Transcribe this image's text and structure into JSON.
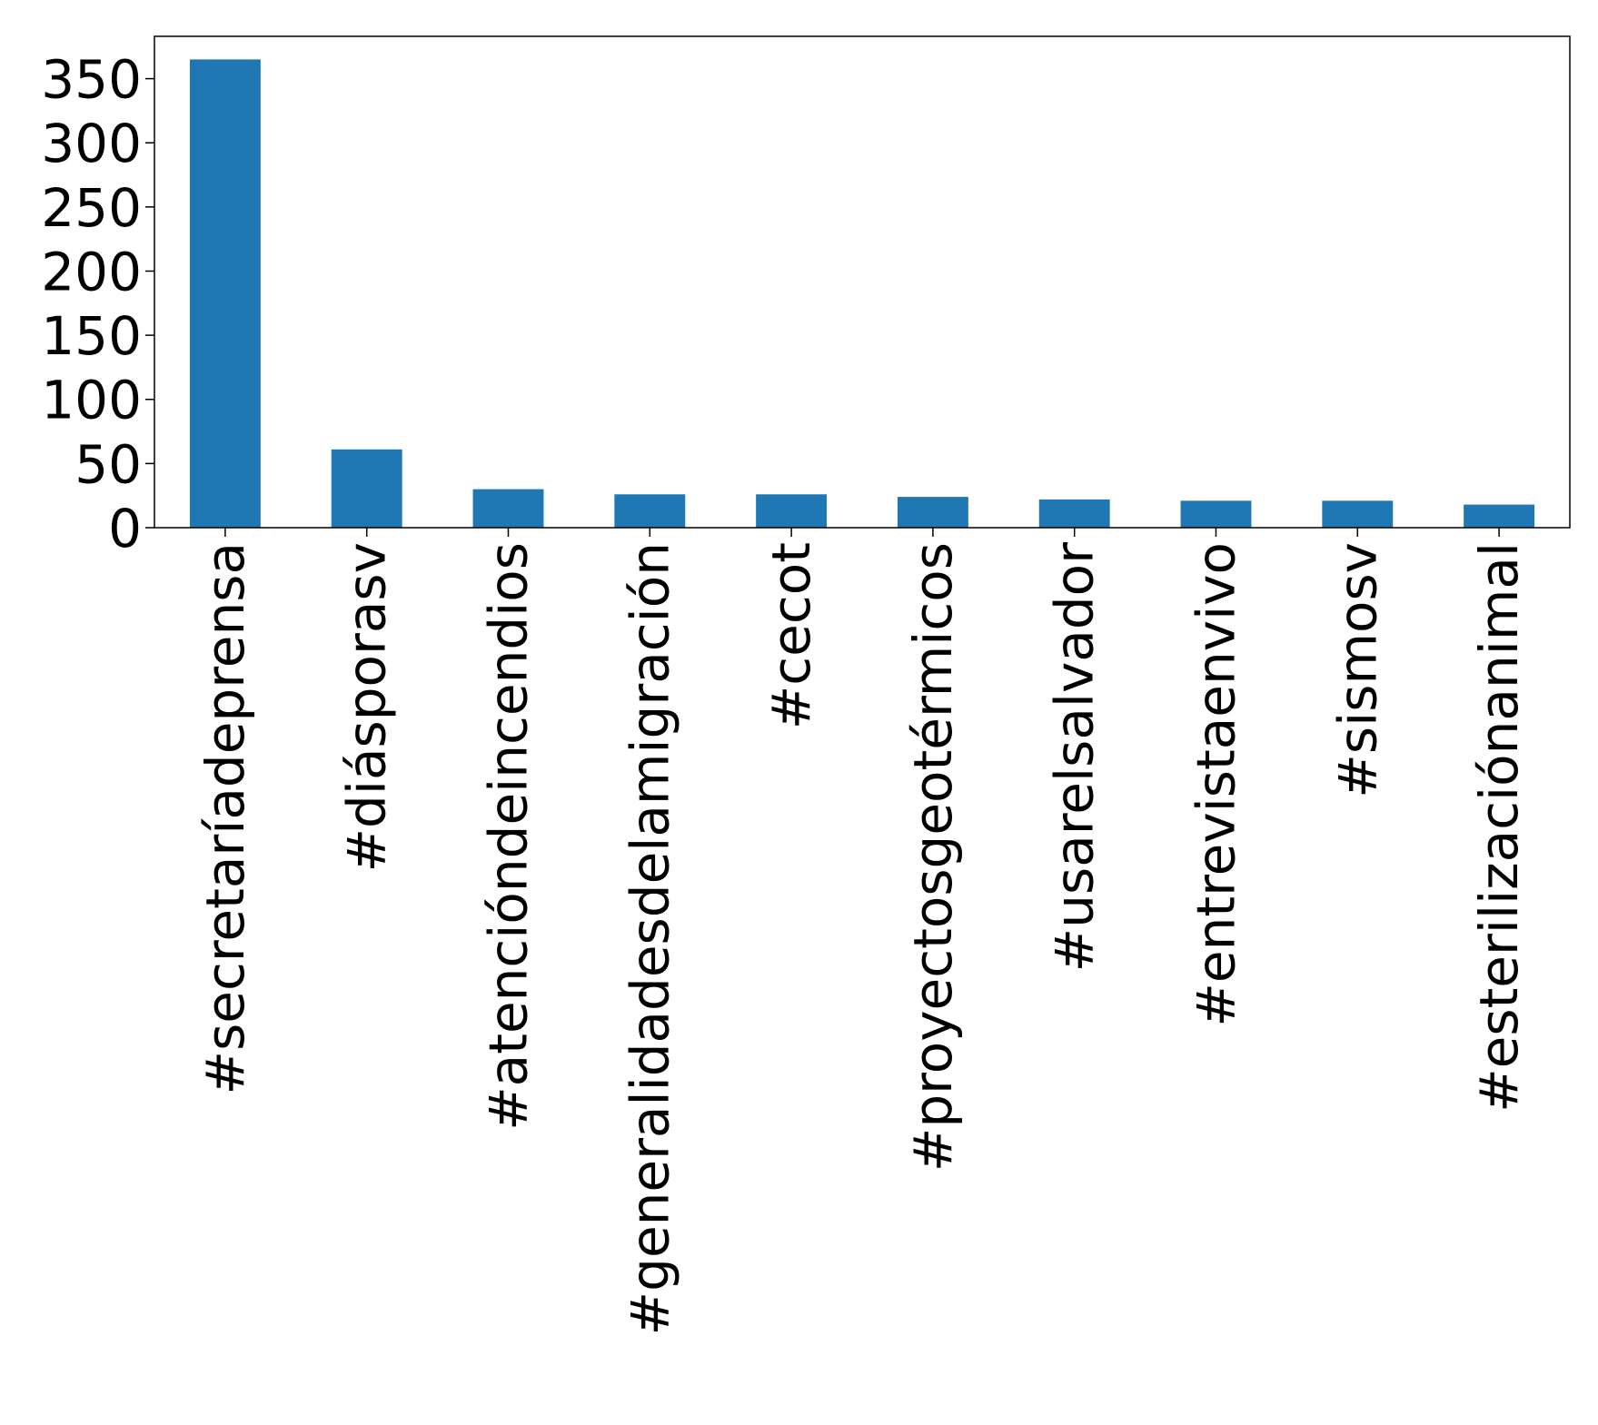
{
  "chart_data": {
    "type": "bar",
    "title": "",
    "xlabel": "",
    "ylabel": "",
    "categories": [
      "#secretaríadeprensa",
      "#diásporasv",
      "#atencióndeincendios",
      "#generalidadesdelamigración",
      "#cecot",
      "#proyectosgeotérmicos",
      "#usarelsalvador",
      "#entrevistaenvivo",
      "#sismosv",
      "#esterilizaciónanimal"
    ],
    "values": [
      365,
      61,
      30,
      26,
      26,
      24,
      22,
      21,
      21,
      18
    ],
    "ylim": [
      0,
      383
    ],
    "yticks": [
      0,
      50,
      100,
      150,
      200,
      250,
      300,
      350
    ],
    "bar_color": "#1f77b4",
    "grid": false,
    "legend": "none"
  }
}
